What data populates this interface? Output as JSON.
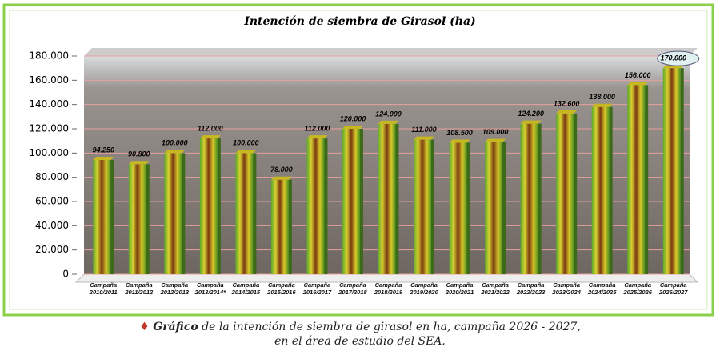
{
  "chart_data": {
    "type": "bar",
    "title": "Intención de siembra de Girasol (ha)",
    "categories": [
      "Campaña 2010/2011",
      "Campaña 2011/2012",
      "Campaña 2012/2013",
      "Campaña 2013/2014*",
      "Campaña 2014/2015",
      "Campaña 2015/2016",
      "Campaña 2016/2017",
      "Campaña 2017/2018",
      "Campaña 2018/2019",
      "Campaña 2019/2020",
      "Campaña 2020/2021",
      "Campaña 2021/2022",
      "Campaña 2022/2023",
      "Campaña 2023/2024",
      "Campaña 2024/2025",
      "Campaña 2025/2026",
      "Campaña 2026/2027"
    ],
    "values": [
      94250,
      90800,
      100000,
      112000,
      100000,
      78000,
      112000,
      120000,
      124000,
      111000,
      108500,
      109000,
      124200,
      132600,
      138000,
      156000,
      170000
    ],
    "value_labels": [
      "94.250",
      "90.800",
      "100.000",
      "112.000",
      "100.000",
      "78.000",
      "112.000",
      "120.000",
      "124.000",
      "111.000",
      "108.500",
      "109.000",
      "124.200",
      "132.600",
      "138.000",
      "156.000",
      "170.000"
    ],
    "ylim": [
      0,
      180000
    ],
    "yticks": [
      0,
      {
        "value": 20000,
        "label": "20.000"
      },
      {
        "value": 40000,
        "label": "40.000"
      },
      {
        "value": 60000,
        "label": "60.000"
      },
      {
        "value": 80000,
        "label": "80.000"
      },
      {
        "value": 100000,
        "label": "100.000"
      },
      {
        "value": 120000,
        "label": "120.000"
      },
      {
        "value": 140000,
        "label": "140.000"
      },
      {
        "value": 160000,
        "label": "160.000"
      },
      {
        "value": 180000,
        "label": "180.000"
      }
    ],
    "grid": true,
    "grid_color": "#e8a0a0"
  },
  "caption": {
    "lead": "Gráfico",
    "line1": "de la intención de siembra de girasol en ha, campaña 2026 - 2027,",
    "line2": "en el área de estudio del SEA."
  }
}
